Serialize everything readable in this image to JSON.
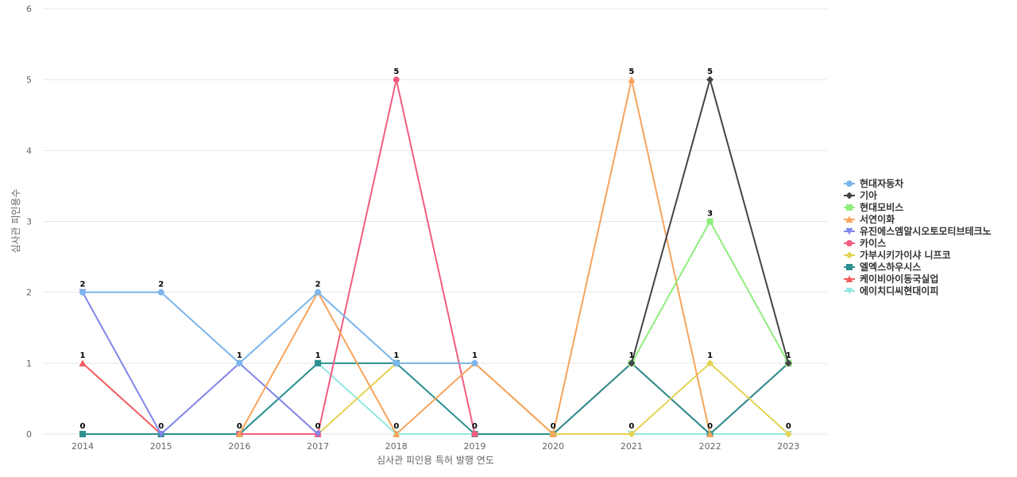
{
  "chart_data": {
    "type": "line",
    "xlabel": "심사관 피인용 특허 발행 연도",
    "ylabel": "심사관 피인용수",
    "ylim": [
      0,
      6
    ],
    "yticks": [
      0,
      1,
      2,
      3,
      4,
      5,
      6
    ],
    "categories": [
      "2014",
      "2015",
      "2016",
      "2017",
      "2018",
      "2019",
      "2020",
      "2021",
      "2022",
      "2023"
    ],
    "grid": true,
    "legend_position": "right",
    "series": [
      {
        "name": "현대자동차",
        "color": "#7cb5ec",
        "marker": "circle",
        "values": [
          2,
          2,
          1,
          2,
          1,
          1,
          null,
          null,
          null,
          null
        ]
      },
      {
        "name": "기아",
        "color": "#434348",
        "marker": "diamond",
        "values": [
          null,
          null,
          null,
          null,
          null,
          null,
          null,
          1,
          5,
          1
        ]
      },
      {
        "name": "현대모비스",
        "color": "#90ed7d",
        "marker": "square",
        "values": [
          null,
          null,
          null,
          null,
          null,
          null,
          null,
          1,
          3,
          1
        ]
      },
      {
        "name": "서연이화",
        "color": "#f7a35c",
        "marker": "triangle",
        "values": [
          null,
          null,
          0,
          2,
          0,
          1,
          0,
          5,
          0,
          null
        ]
      },
      {
        "name": "유진에스엠알시오토모티브테크노",
        "color": "#8085e9",
        "marker": "triangle-down",
        "values": [
          2,
          0,
          1,
          0,
          null,
          null,
          null,
          null,
          null,
          null
        ]
      },
      {
        "name": "카이스",
        "color": "#f15c80",
        "marker": "circle",
        "values": [
          null,
          null,
          0,
          0,
          5,
          0,
          null,
          null,
          null,
          null
        ]
      },
      {
        "name": "가부시키가이샤 니프코",
        "color": "#e4d354",
        "marker": "diamond",
        "values": [
          null,
          null,
          null,
          0,
          1,
          1,
          0,
          0,
          1,
          0
        ]
      },
      {
        "name": "엘엑스하우시스",
        "color": "#2b908f",
        "marker": "square",
        "values": [
          0,
          0,
          0,
          1,
          1,
          0,
          0,
          1,
          0,
          1
        ]
      },
      {
        "name": "케이비아이동국실업",
        "color": "#f45b5b",
        "marker": "triangle",
        "values": [
          1,
          0,
          0,
          0,
          null,
          null,
          0,
          1,
          0,
          1
        ]
      },
      {
        "name": "에이치디씨현대이피",
        "color": "#91e8e1",
        "marker": "triangle-down",
        "values": [
          0,
          0,
          0,
          1,
          0,
          0,
          0,
          0,
          0,
          0
        ]
      }
    ],
    "data_labels": [
      {
        "x": "2014",
        "value": 2
      },
      {
        "x": "2014",
        "value": 1
      },
      {
        "x": "2014",
        "value": 0
      },
      {
        "x": "2015",
        "value": 2
      },
      {
        "x": "2015",
        "value": 0
      },
      {
        "x": "2016",
        "value": 1
      },
      {
        "x": "2016",
        "value": 0
      },
      {
        "x": "2017",
        "value": 2
      },
      {
        "x": "2017",
        "value": 1
      },
      {
        "x": "2017",
        "value": 0
      },
      {
        "x": "2018",
        "value": 5
      },
      {
        "x": "2018",
        "value": 1
      },
      {
        "x": "2018",
        "value": 0
      },
      {
        "x": "2019",
        "value": 1
      },
      {
        "x": "2019",
        "value": 0
      },
      {
        "x": "2020",
        "value": 0
      },
      {
        "x": "2021",
        "value": 5
      },
      {
        "x": "2021",
        "value": 1
      },
      {
        "x": "2021",
        "value": 0
      },
      {
        "x": "2022",
        "value": 5
      },
      {
        "x": "2022",
        "value": 3
      },
      {
        "x": "2022",
        "value": 1
      },
      {
        "x": "2022",
        "value": 0
      },
      {
        "x": "2023",
        "value": 1
      },
      {
        "x": "2023",
        "value": 0
      }
    ]
  }
}
